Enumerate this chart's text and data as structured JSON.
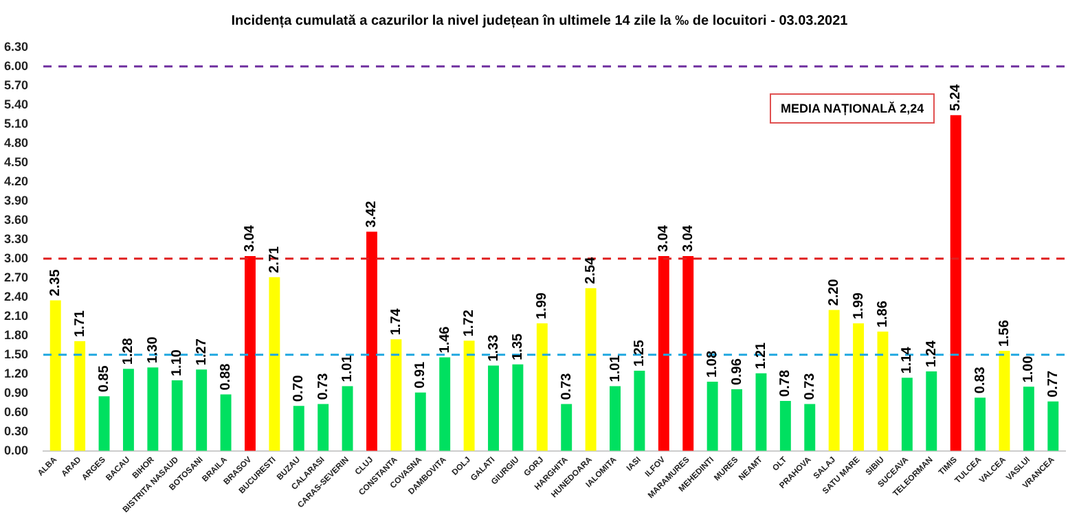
{
  "chart_data": {
    "type": "bar",
    "title": "Incidența cumulată a cazurilor la nivel județean în ultimele 14 zile la ‰ de locuitori - 03.03.2021",
    "categories": [
      "ALBA",
      "ARAD",
      "ARGES",
      "BACAU",
      "BIHOR",
      "BISTRITA NASAUD",
      "BOTOSANI",
      "BRAILA",
      "BRASOV",
      "BUCURESTI",
      "BUZAU",
      "CALARASI",
      "CARAS-SEVERIN",
      "CLUJ",
      "CONSTANTA",
      "COVASNA",
      "DAMBOVITA",
      "DOLJ",
      "GALATI",
      "GIURGIU",
      "GORJ",
      "HARGHITA",
      "HUNEDOARA",
      "IALOMITA",
      "IASI",
      "ILFOV",
      "MARAMURES",
      "MEHEDINTI",
      "MURES",
      "NEAMT",
      "OLT",
      "PRAHOVA",
      "SALAJ",
      "SATU MARE",
      "SIBIU",
      "SUCEAVA",
      "TELEORMAN",
      "TIMIS",
      "TULCEA",
      "VALCEA",
      "VASLUI",
      "VRANCEA"
    ],
    "values": [
      2.35,
      1.71,
      0.85,
      1.28,
      1.3,
      1.1,
      1.27,
      0.88,
      3.04,
      2.71,
      0.7,
      0.73,
      1.01,
      3.42,
      1.74,
      0.91,
      1.46,
      1.72,
      1.33,
      1.35,
      1.99,
      0.73,
      2.54,
      1.01,
      1.25,
      3.04,
      3.04,
      1.08,
      0.96,
      1.21,
      0.78,
      0.73,
      2.2,
      1.99,
      1.86,
      1.14,
      1.24,
      5.24,
      0.83,
      1.56,
      1.0,
      0.77
    ],
    "colors": [
      "#ffff00",
      "#ffff00",
      "#00e060",
      "#00e060",
      "#00e060",
      "#00e060",
      "#00e060",
      "#00e060",
      "#ff0000",
      "#ffff00",
      "#00e060",
      "#00e060",
      "#00e060",
      "#ff0000",
      "#ffff00",
      "#00e060",
      "#00e060",
      "#ffff00",
      "#00e060",
      "#00e060",
      "#ffff00",
      "#00e060",
      "#ffff00",
      "#00e060",
      "#00e060",
      "#ff0000",
      "#ff0000",
      "#00e060",
      "#00e060",
      "#00e060",
      "#00e060",
      "#00e060",
      "#ffff00",
      "#ffff00",
      "#ffff00",
      "#00e060",
      "#00e060",
      "#ff0000",
      "#00e060",
      "#ffff00",
      "#00e060",
      "#00e060"
    ],
    "ylim": [
      0,
      6.3
    ],
    "yticks": [
      {
        "value": 0,
        "label": "0.00"
      },
      {
        "value": 0.3,
        "label": "0.30"
      },
      {
        "value": 0.6,
        "label": "0.60"
      },
      {
        "value": 0.9,
        "label": "0.90"
      },
      {
        "value": 1.2,
        "label": "1.20"
      },
      {
        "value": 1.5,
        "label": "1.50"
      },
      {
        "value": 1.8,
        "label": "1.80"
      },
      {
        "value": 2.1,
        "label": "2.10"
      },
      {
        "value": 2.4,
        "label": "2.40"
      },
      {
        "value": 2.7,
        "label": "2.70"
      },
      {
        "value": 3,
        "label": "3.00"
      },
      {
        "value": 3.3,
        "label": "3.30"
      },
      {
        "value": 3.6,
        "label": "3.60"
      },
      {
        "value": 3.9,
        "label": "3.90"
      },
      {
        "value": 4.2,
        "label": "4.20"
      },
      {
        "value": 4.5,
        "label": "4.50"
      },
      {
        "value": 4.8,
        "label": "4.80"
      },
      {
        "value": 5.1,
        "label": "5.10"
      },
      {
        "value": 5.4,
        "label": "5.40"
      },
      {
        "value": 5.7,
        "label": "5.70"
      },
      {
        "value": 6,
        "label": "6.00"
      },
      {
        "value": 6.3,
        "label": "6.30"
      }
    ],
    "ref_lines": [
      {
        "axis": "y",
        "value": 6,
        "color": "#7030a0",
        "line_style": "dashed"
      },
      {
        "axis": "y",
        "value": 3,
        "color": "#e02020",
        "line_style": "dashed"
      },
      {
        "axis": "y",
        "value": 1.5,
        "color": "#20a8e0",
        "line_style": "dashed"
      }
    ],
    "annotations": [
      "MEDIA NAȚIONALĂ 2,24"
    ],
    "value_labels": [
      "2.35",
      "1.71",
      "0.85",
      "1.28",
      "1.30",
      "1.10",
      "1.27",
      "0.88",
      "3.04",
      "2.71",
      "0.70",
      "0.73",
      "1.01",
      "3.42",
      "1.74",
      "0.91",
      "1.46",
      "1.72",
      "1.33",
      "1.35",
      "1.99",
      "0.73",
      "2.54",
      "1.01",
      "1.25",
      "3.04",
      "3.04",
      "1.08",
      "0.96",
      "1.21",
      "0.78",
      "0.73",
      "2.20",
      "1.99",
      "1.86",
      "1.14",
      "1.24",
      "5.24",
      "0.83",
      "1.56",
      "1.00",
      "0.77"
    ],
    "grid": false,
    "legend": false
  }
}
